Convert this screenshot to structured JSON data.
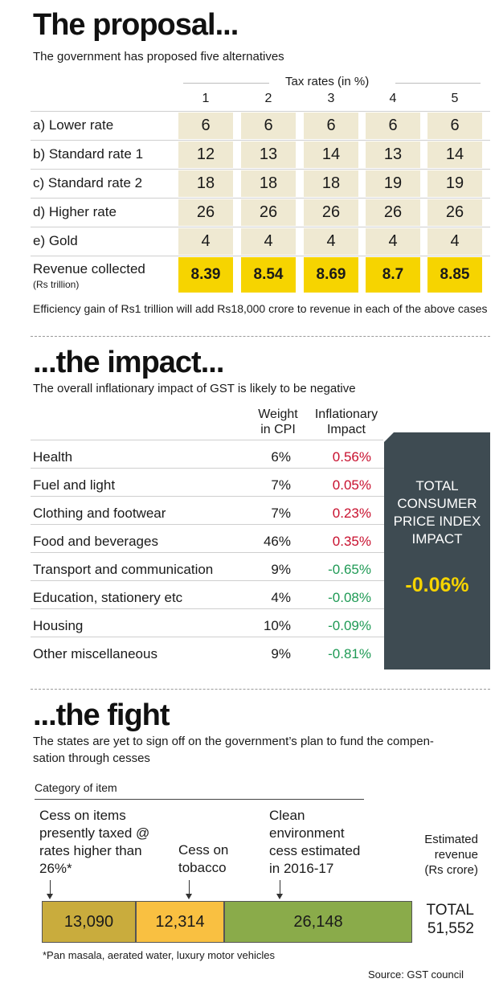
{
  "colors": {
    "tan": "#efe9d2",
    "yellow": "#f6d400",
    "dark_panel": "#3e4b52",
    "positive": "#c8102e",
    "negative": "#1f9a55",
    "seg_gold": "#c9ac3d",
    "seg_orange": "#f9c041",
    "seg_green": "#8aab4a"
  },
  "section1": {
    "title": "The proposal...",
    "subtitle": "The government has proposed five alternatives",
    "tax_header": "Tax rates (in %)",
    "footnote": "Efficiency gain of Rs1 trillion will add Rs18,000 crore to revenue in each of the above cases"
  },
  "section2": {
    "title": "...the impact...",
    "subtitle": "The overall inflationary impact of GST is likely to be negative",
    "col_weight": [
      "Weight",
      "in CPI"
    ],
    "col_impact": [
      "Inflationary",
      "Impact"
    ],
    "panel_lines": [
      "TOTAL",
      "CONSUMER",
      "PRICE INDEX",
      "IMPACT"
    ],
    "panel_value": "-0.06%"
  },
  "section3": {
    "title": "...the fight",
    "subtitle_lines": [
      "The states are yet to sign off on the government’s plan to fund the compen-",
      "sation through cesses"
    ],
    "category_label": "Category of item",
    "est_label": [
      "Estimated",
      "revenue",
      "(Rs crore)"
    ],
    "total_label": "TOTAL",
    "total_value": "51,552",
    "footnote": "*Pan masala, aerated water, luxury motor vehicles",
    "source": "Source: GST council"
  },
  "chart_data": [
    {
      "type": "table",
      "columns": [
        "1",
        "2",
        "3",
        "4",
        "5"
      ],
      "rows": [
        {
          "label": "a) Lower rate",
          "values": [
            "6",
            "6",
            "6",
            "6",
            "6"
          ]
        },
        {
          "label": "b) Standard rate 1",
          "values": [
            "12",
            "13",
            "14",
            "13",
            "14"
          ]
        },
        {
          "label": "c) Standard rate 2",
          "values": [
            "18",
            "18",
            "18",
            "19",
            "19"
          ]
        },
        {
          "label": "d) Higher rate",
          "values": [
            "26",
            "26",
            "26",
            "26",
            "26"
          ]
        },
        {
          "label": "e) Gold",
          "values": [
            "4",
            "4",
            "4",
            "4",
            "4"
          ]
        },
        {
          "label": "Revenue collected",
          "sublabel": "(Rs trillion)",
          "values": [
            "8.39",
            "8.54",
            "8.69",
            "8.7",
            "8.85"
          ]
        }
      ]
    },
    {
      "type": "table",
      "rows": [
        {
          "label": "Health",
          "weight": "6%",
          "impact": "0.56%"
        },
        {
          "label": "Fuel and light",
          "weight": "7%",
          "impact": "0.05%"
        },
        {
          "label": "Clothing and footwear",
          "weight": "7%",
          "impact": "0.23%"
        },
        {
          "label": "Food and beverages",
          "weight": "46%",
          "impact": "0.35%"
        },
        {
          "label": "Transport and communication",
          "weight": "9%",
          "impact": "-0.65%"
        },
        {
          "label": "Education, stationery etc",
          "weight": "4%",
          "impact": "-0.08%"
        },
        {
          "label": "Housing",
          "weight": "10%",
          "impact": "-0.09%"
        },
        {
          "label": "Other miscellaneous",
          "weight": "9%",
          "impact": "-0.81%"
        }
      ]
    },
    {
      "type": "bar",
      "stacked": true,
      "segments": [
        {
          "label": [
            "Cess on items",
            "presently taxed @",
            "rates higher than",
            "26%*"
          ],
          "value": 13090,
          "value_label": "13,090"
        },
        {
          "label": [
            "Cess on",
            "tobacco"
          ],
          "value": 12314,
          "value_label": "12,314"
        },
        {
          "label": [
            "Clean",
            "environment",
            "cess estimated",
            "in 2016-17"
          ],
          "value": 26148,
          "value_label": "26,148"
        }
      ],
      "total": 51552
    }
  ]
}
